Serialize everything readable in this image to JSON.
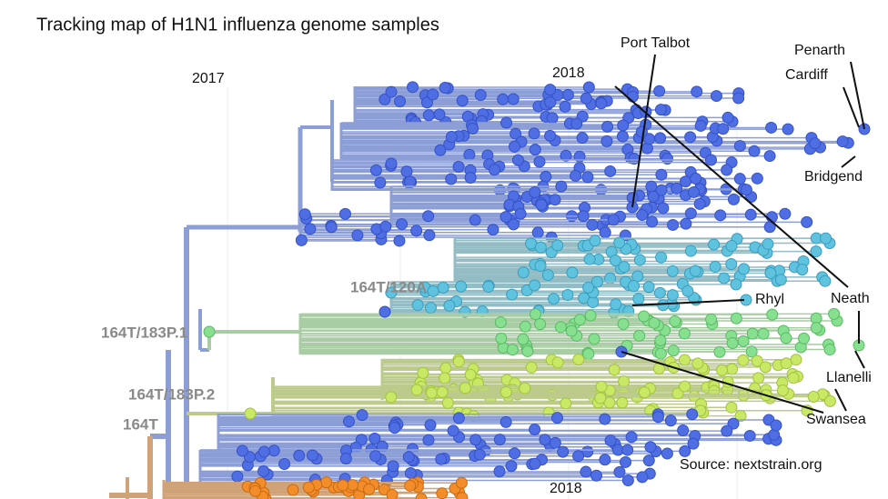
{
  "title": "Tracking map of H1N1 influenza genome samples",
  "time_labels": [
    "2017",
    "2018",
    "2018"
  ],
  "clades": [
    "164T/120A",
    "164T/183P.1",
    "164T/183P.2",
    "164T"
  ],
  "locations": [
    "Port Talbot",
    "Penarth",
    "Cardiff",
    "Bridgend",
    "Neath",
    "Rhyl",
    "Llanelli",
    "Swansea"
  ],
  "source": "Source: nextstrain.org"
}
